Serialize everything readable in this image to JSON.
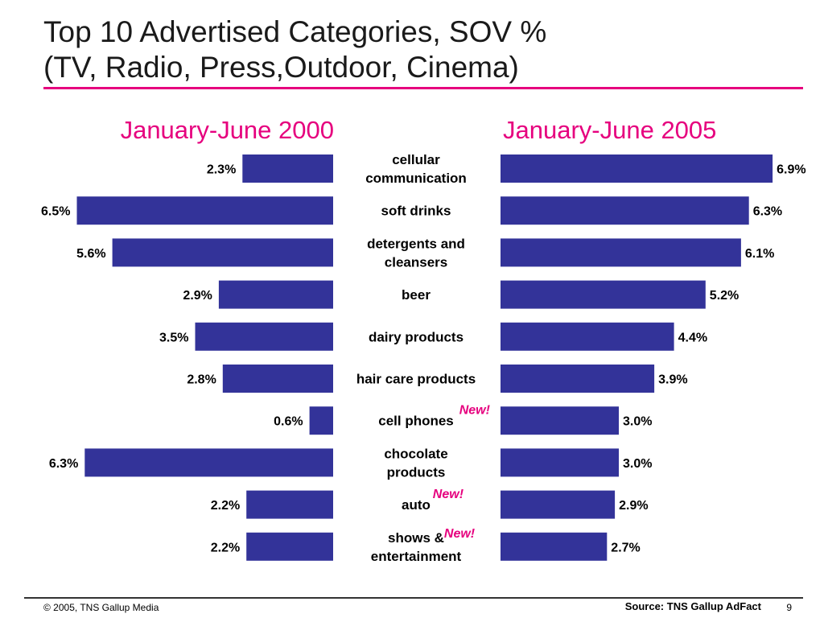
{
  "slide": {
    "title_line1": "Top 10 Advertised Categories, SOV %",
    "title_line2": "(TV, Radio, Press,Outdoor, Cinema)",
    "copyright": "© 2005, TNS Gallup Media",
    "source": "Source: TNS Gallup AdFact",
    "page_number": "9"
  },
  "colors": {
    "bar": "#333399",
    "accent": "#e6007e",
    "title_rule": "#e6007e"
  },
  "chart_data": {
    "type": "bar",
    "orientation": "horizontal",
    "layout": "butterfly",
    "categories": [
      "cellular communication",
      "soft drinks",
      "detergents and cleansers",
      "beer",
      "dairy products",
      "hair care products",
      "cell phones",
      "chocolate products",
      "auto",
      "shows & entertainment"
    ],
    "new_flags": [
      false,
      false,
      false,
      false,
      false,
      false,
      true,
      false,
      true,
      true
    ],
    "new_label": "New!",
    "series": [
      {
        "name": "January-June 2000",
        "values": [
          2.3,
          6.5,
          5.6,
          2.9,
          3.5,
          2.8,
          0.6,
          6.3,
          2.2,
          2.2
        ],
        "labels": [
          "2.3%",
          "6.5%",
          "5.6%",
          "2.9%",
          "3.5%",
          "2.8%",
          "0.6%",
          "6.3%",
          "2.2%",
          "2.2%"
        ]
      },
      {
        "name": "January-June 2005",
        "values": [
          6.9,
          6.3,
          6.1,
          5.2,
          4.4,
          3.9,
          3.0,
          3.0,
          2.9,
          2.7
        ],
        "labels": [
          "6.9%",
          "6.3%",
          "6.1%",
          "5.2%",
          "4.4%",
          "3.9%",
          "3.0%",
          "3.0%",
          "2.9%",
          "2.7%"
        ]
      }
    ],
    "value_unit": "%",
    "grid": false,
    "legend": "none"
  }
}
